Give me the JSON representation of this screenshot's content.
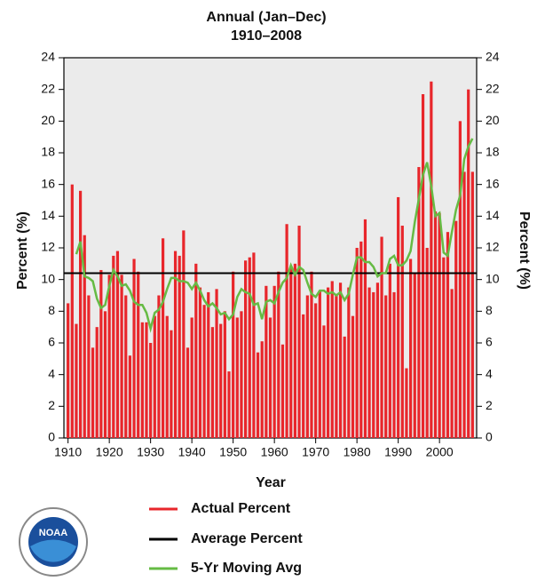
{
  "chart_data": {
    "type": "bar",
    "subtitle": "Annual (Jan–Dec)",
    "period": "1910–2008",
    "xlabel": "Year",
    "ylabel": "Percent (%)",
    "y2label": "Percent (%)",
    "logo_text": "NOAA",
    "x": [
      1910,
      1911,
      1912,
      1913,
      1914,
      1915,
      1916,
      1917,
      1918,
      1919,
      1920,
      1921,
      1922,
      1923,
      1924,
      1925,
      1926,
      1927,
      1928,
      1929,
      1930,
      1931,
      1932,
      1933,
      1934,
      1935,
      1936,
      1937,
      1938,
      1939,
      1940,
      1941,
      1942,
      1943,
      1944,
      1945,
      1946,
      1947,
      1948,
      1949,
      1950,
      1951,
      1952,
      1953,
      1954,
      1955,
      1956,
      1957,
      1958,
      1959,
      1960,
      1961,
      1962,
      1963,
      1964,
      1965,
      1966,
      1967,
      1968,
      1969,
      1970,
      1971,
      1972,
      1973,
      1974,
      1975,
      1976,
      1977,
      1978,
      1979,
      1980,
      1981,
      1982,
      1983,
      1984,
      1985,
      1986,
      1987,
      1988,
      1989,
      1990,
      1991,
      1992,
      1993,
      1994,
      1995,
      1996,
      1997,
      1998,
      1999,
      2000,
      2001,
      2002,
      2003,
      2004,
      2005,
      2006,
      2007,
      2008
    ],
    "series": [
      {
        "name": "Actual Percent",
        "color": "#e8262b",
        "kind": "bar",
        "values": [
          8.5,
          16,
          7.2,
          15.6,
          12.8,
          9,
          5.7,
          7,
          10.6,
          8,
          10.3,
          11.5,
          11.8,
          10.3,
          9,
          5.2,
          11.3,
          10.5,
          7.3,
          7.3,
          6,
          7.7,
          9,
          12.6,
          7.7,
          6.8,
          11.8,
          11.5,
          13.1,
          5.7,
          7.6,
          11,
          9.5,
          8.4,
          9.2,
          7,
          9.4,
          7.2,
          8,
          4.2,
          10.5,
          7.6,
          8,
          11.2,
          11.4,
          11.7,
          5.4,
          6.1,
          9.6,
          7.6,
          9.6,
          10.5,
          5.9,
          13.5,
          10.8,
          11,
          13.4,
          7.8,
          9,
          10.5,
          8.5,
          9.3,
          7.1,
          9.5,
          9.9,
          9,
          9.8,
          6.4,
          9.5,
          7.7,
          12,
          12.4,
          13.8,
          9.5,
          9.2,
          9.8,
          12.7,
          9,
          11,
          9.2,
          15.2,
          13.4,
          4.4,
          11.3,
          10.4,
          17.1,
          21.7,
          12,
          22.5,
          14.3,
          14.2,
          11.4,
          13,
          9.4,
          13.7,
          20,
          16.8,
          22,
          16.8
        ]
      },
      {
        "name": "5-Yr Moving Avg",
        "color": "#66bb44",
        "kind": "line",
        "values": [
          null,
          null,
          11.6,
          12.4,
          10.2,
          10.1,
          9.9,
          8.8,
          8.2,
          8.4,
          9.6,
          10.6,
          10.2,
          9.6,
          9.7,
          9.3,
          8.6,
          8.4,
          8.4,
          7.9,
          6.9,
          7.9,
          8.1,
          8.6,
          9.4,
          10.1,
          10.1,
          9.9,
          9.9,
          9.8,
          9.4,
          9.8,
          9.3,
          8.7,
          8.3,
          8.5,
          8.2,
          7.8,
          7.9,
          7.5,
          7.8,
          8.9,
          9.4,
          9.2,
          9.1,
          8.4,
          8.5,
          7.5,
          8.6,
          8.7,
          8.5,
          9.2,
          9.8,
          10.1,
          10.9,
          10.3,
          10.8,
          10.6,
          9.8,
          9.1,
          8.9,
          9.3,
          9.3,
          9.1,
          9.2,
          9,
          9.2,
          8.7,
          9.1,
          10.3,
          11.4,
          11.4,
          11.1,
          11.1,
          10.8,
          10.2,
          10.4,
          10.4,
          11.3,
          11.5,
          10.9,
          10.9,
          11.2,
          11.8,
          13.6,
          15.1,
          16.6,
          17.4,
          15.9,
          14,
          14.2,
          11.7,
          11.5,
          13,
          14.4,
          15.3,
          17.6,
          18.4,
          18.9
        ]
      }
    ],
    "average": {
      "name": "Average Percent",
      "color": "#000000",
      "value": 10.4
    },
    "xlim": [
      1909,
      2009
    ],
    "xticks": [
      1910,
      1920,
      1930,
      1940,
      1950,
      1960,
      1970,
      1980,
      1990,
      2000
    ],
    "ylim": [
      0,
      24
    ],
    "yticks": [
      0,
      2,
      4,
      6,
      8,
      10,
      12,
      14,
      16,
      18,
      20,
      22,
      24
    ],
    "y2lim": [
      0,
      24
    ],
    "y2ticks": [
      0,
      2,
      4,
      6,
      8,
      10,
      12,
      14,
      16,
      18,
      20,
      22,
      24
    ],
    "plot_background": "#ebebeb"
  }
}
